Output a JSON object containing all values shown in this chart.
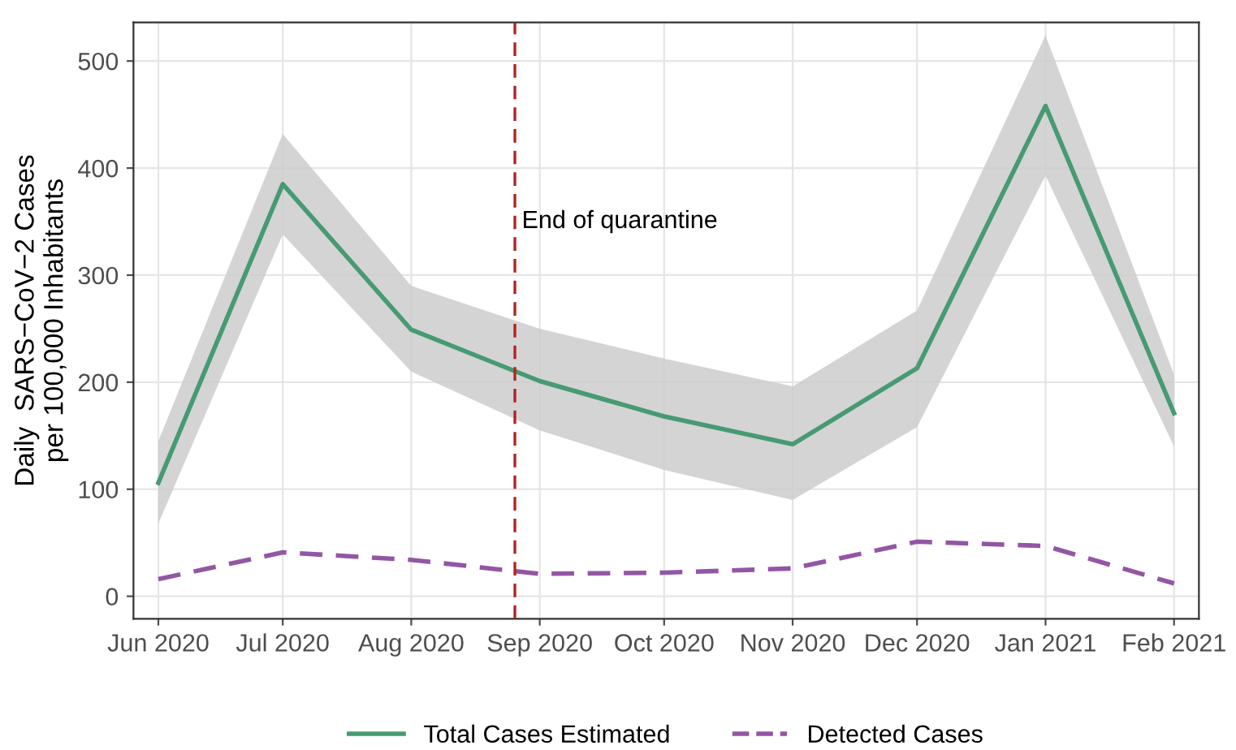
{
  "chart_data": {
    "type": "line",
    "ylabel": "Daily  SARS−CoV−2 Cases\nper 100,000 Inhabitants",
    "x": [
      "2020-06-01",
      "2020-07-01",
      "2020-08-01",
      "2020-09-01",
      "2020-10-01",
      "2020-11-01",
      "2020-12-01",
      "2021-01-01",
      "2021-02-01"
    ],
    "series": [
      {
        "name": "Total Cases Estimated",
        "color": "#479a72",
        "line_style": "solid",
        "values": [
          106,
          385,
          249,
          201,
          168,
          142,
          213,
          458,
          171
        ],
        "lower": [
          68,
          338,
          210,
          155,
          118,
          90,
          158,
          393,
          140
        ],
        "upper": [
          145,
          432,
          290,
          250,
          222,
          196,
          267,
          524,
          207
        ]
      },
      {
        "name": "Detected Cases",
        "color": "#9356a5",
        "line_style": "dashed",
        "values": [
          16,
          41,
          34,
          21,
          22,
          26,
          51,
          47,
          12
        ]
      }
    ],
    "xlim": [
      "2020-05-26",
      "2021-02-07"
    ],
    "xticks": [
      {
        "value": "2020-06-01",
        "label": "Jun 2020"
      },
      {
        "value": "2020-07-01",
        "label": "Jul 2020"
      },
      {
        "value": "2020-08-01",
        "label": "Aug 2020"
      },
      {
        "value": "2020-09-01",
        "label": "Sep 2020"
      },
      {
        "value": "2020-10-01",
        "label": "Oct 2020"
      },
      {
        "value": "2020-11-01",
        "label": "Nov 2020"
      },
      {
        "value": "2020-12-01",
        "label": "Dec 2020"
      },
      {
        "value": "2021-01-01",
        "label": "Jan 2021"
      },
      {
        "value": "2021-02-01",
        "label": "Feb 2021"
      }
    ],
    "ylim": [
      -21,
      536
    ],
    "yticks": [
      0,
      100,
      200,
      300,
      400,
      500
    ],
    "ref_lines": [
      {
        "axis": "x",
        "value": "2020-08-26",
        "label": "End of quarantine",
        "color": "#b22222",
        "line_style": "dashed"
      }
    ],
    "grid": true,
    "legend": "bottom"
  }
}
